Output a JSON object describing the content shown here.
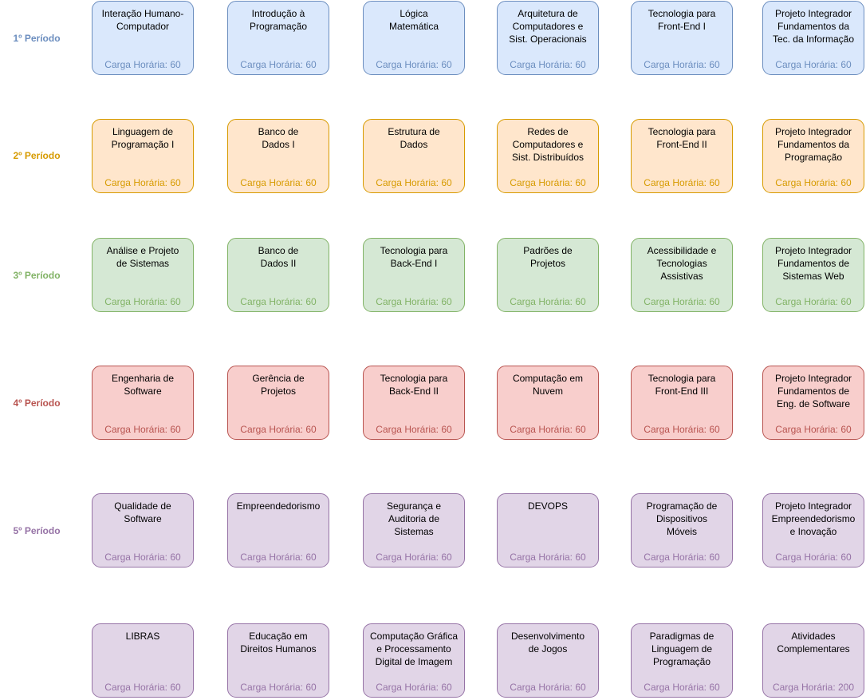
{
  "periods": [
    {
      "label": "1º Período",
      "color": "#6c8ebf",
      "fill": "#dae8fc"
    },
    {
      "label": "2º Período",
      "color": "#d79b00",
      "fill": "#ffe6cc"
    },
    {
      "label": "3º Período",
      "color": "#82b366",
      "fill": "#d5e8d4"
    },
    {
      "label": "4º Período",
      "color": "#b85450",
      "fill": "#f8cecc"
    },
    {
      "label": "5º Período",
      "color": "#9673a6",
      "fill": "#e1d5e7"
    }
  ],
  "rows": [
    [
      {
        "title": "Interação Humano-\nComputador",
        "hours": "Carga Horária: 60"
      },
      {
        "title": "Introdução à\nProgramação",
        "hours": "Carga Horária: 60"
      },
      {
        "title": "Lógica\nMatemática",
        "hours": "Carga Horária: 60"
      },
      {
        "title": "Arquitetura de\nComputadores e\nSist. Operacionais",
        "hours": "Carga Horária: 60"
      },
      {
        "title": "Tecnologia para\nFront-End I",
        "hours": "Carga Horária: 60"
      },
      {
        "title": "Projeto Integrador\nFundamentos da\nTec. da Informação",
        "hours": "Carga Horária: 60"
      }
    ],
    [
      {
        "title": "Linguagem de\nProgramação I",
        "hours": "Carga Horária: 60"
      },
      {
        "title": "Banco de\nDados I",
        "hours": "Carga Horária: 60"
      },
      {
        "title": "Estrutura de\nDados",
        "hours": "Carga Horária: 60"
      },
      {
        "title": "Redes de\nComputadores e\nSist. Distribuídos",
        "hours": "Carga Horária: 60"
      },
      {
        "title": "Tecnologia para\nFront-End II",
        "hours": "Carga Horária: 60"
      },
      {
        "title": "Projeto Integrador\nFundamentos da\nProgramação",
        "hours": "Carga Horária: 60"
      }
    ],
    [
      {
        "title": "Análise e Projeto\nde Sistemas",
        "hours": "Carga Horária: 60"
      },
      {
        "title": "Banco de\nDados II",
        "hours": "Carga Horária: 60"
      },
      {
        "title": "Tecnologia para\nBack-End I",
        "hours": "Carga Horária: 60"
      },
      {
        "title": "Padrões de\nProjetos",
        "hours": "Carga Horária: 60"
      },
      {
        "title": "Acessibilidade e\nTecnologias\nAssistivas",
        "hours": "Carga Horária: 60"
      },
      {
        "title": "Projeto Integrador\nFundamentos de\nSistemas Web",
        "hours": "Carga Horária: 60"
      }
    ],
    [
      {
        "title": "Engenharia de\nSoftware",
        "hours": "Carga Horária: 60"
      },
      {
        "title": "Gerência de\nProjetos",
        "hours": "Carga Horária: 60"
      },
      {
        "title": "Tecnologia para\nBack-End II",
        "hours": "Carga Horária: 60"
      },
      {
        "title": "Computação em\nNuvem",
        "hours": "Carga Horária: 60"
      },
      {
        "title": "Tecnologia para\nFront-End III",
        "hours": "Carga Horária: 60"
      },
      {
        "title": "Projeto Integrador\nFundamentos de\nEng. de Software",
        "hours": "Carga Horária: 60"
      }
    ],
    [
      {
        "title": "Qualidade de\nSoftware",
        "hours": "Carga Horária: 60"
      },
      {
        "title": "Empreendedorismo",
        "hours": "Carga Horária: 60"
      },
      {
        "title": "Segurança e\nAuditoria de\nSistemas",
        "hours": "Carga Horária: 60"
      },
      {
        "title": "DEVOPS",
        "hours": "Carga Horária: 60"
      },
      {
        "title": "Programação de\nDispositivos\nMóveis",
        "hours": "Carga Horária: 60"
      },
      {
        "title": "Projeto Integrador\nEmpreendedorismo\ne Inovação",
        "hours": "Carga Horária: 60"
      }
    ],
    [
      {
        "title": "LIBRAS",
        "hours": "Carga Horária: 60"
      },
      {
        "title": "Educação em\nDireitos Humanos",
        "hours": "Carga Horária: 60"
      },
      {
        "title": "Computação Gráfica\ne Processamento\nDigital de Imagem",
        "hours": "Carga Horária: 60"
      },
      {
        "title": "Desenvolvimento\nde Jogos",
        "hours": "Carga Horária: 60"
      },
      {
        "title": "Paradigmas de\nLinguagem de\nProgramação",
        "hours": "Carga Horária: 60"
      },
      {
        "title": "Atividades\nComplementares",
        "hours": "Carga Horária: 200"
      }
    ]
  ]
}
